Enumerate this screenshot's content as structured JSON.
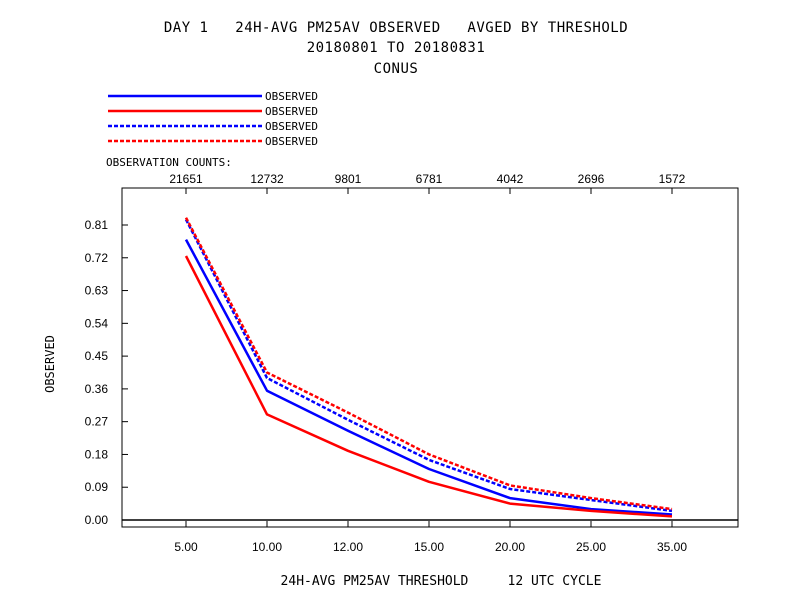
{
  "header": {
    "line1": "DAY 1   24H-AVG PM25AV OBSERVED   AVGED BY THRESHOLD",
    "line2": "20180801 TO 20180831",
    "line3": "CONUS"
  },
  "chart_data": {
    "type": "line",
    "categories": [
      "5.00",
      "10.00",
      "12.00",
      "15.00",
      "20.00",
      "25.00",
      "35.00"
    ],
    "counts_label": "OBSERVATION COUNTS:",
    "counts": [
      "21651",
      "12732",
      "9801",
      "6781",
      "4042",
      "2696",
      "1572"
    ],
    "ylabel": "OBSERVED",
    "xlabel": "24H-AVG PM25AV THRESHOLD     12 UTC CYCLE",
    "ylim": [
      0,
      0.9
    ],
    "yticks": [
      "0.00",
      "0.09",
      "0.18",
      "0.27",
      "0.36",
      "0.45",
      "0.54",
      "0.63",
      "0.72",
      "0.81"
    ],
    "grid": false,
    "legend_position": "top-left",
    "series": [
      {
        "name": "OBSERVED",
        "color": "#0000ff",
        "dash": "solid",
        "values": [
          0.77,
          0.355,
          0.245,
          0.14,
          0.06,
          0.03,
          0.015
        ]
      },
      {
        "name": "OBSERVED",
        "color": "#ff0000",
        "dash": "solid",
        "values": [
          0.725,
          0.29,
          0.19,
          0.105,
          0.045,
          0.025,
          0.01
        ]
      },
      {
        "name": "OBSERVED",
        "color": "#0000ff",
        "dash": "dashed",
        "values": [
          0.825,
          0.39,
          0.275,
          0.165,
          0.085,
          0.055,
          0.025
        ]
      },
      {
        "name": "OBSERVED",
        "color": "#ff0000",
        "dash": "dashed",
        "values": [
          0.83,
          0.405,
          0.295,
          0.18,
          0.095,
          0.06,
          0.03
        ]
      }
    ]
  }
}
